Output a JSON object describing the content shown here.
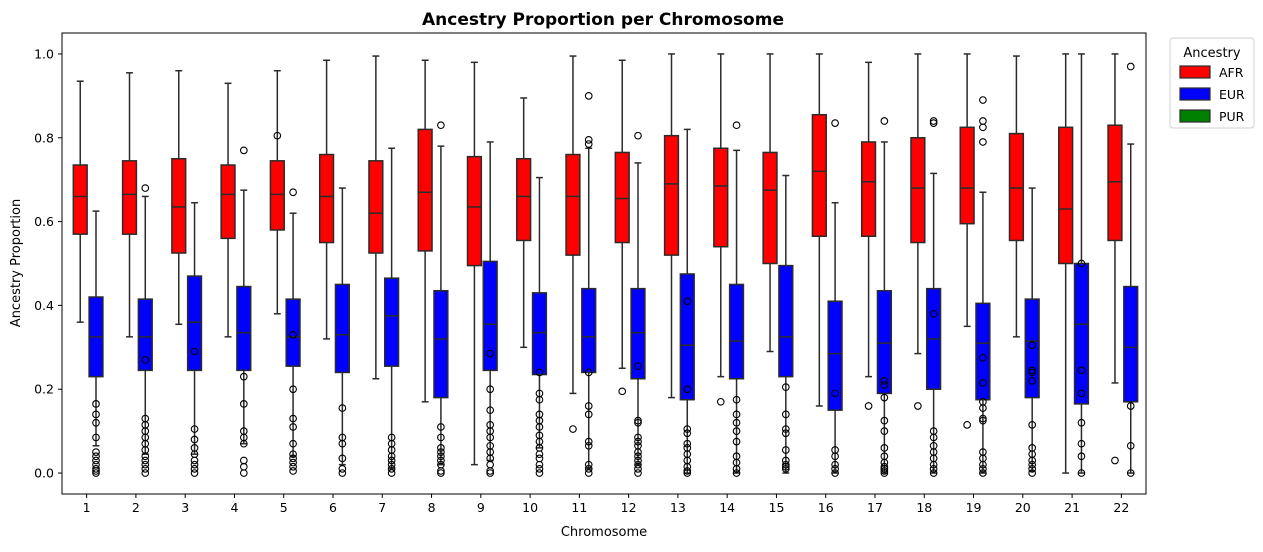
{
  "chart_data": {
    "type": "box",
    "title": "Ancestry Proportion per Chromosome",
    "xlabel": "Chromosome",
    "ylabel": "Ancestry Proportion",
    "ylim": [
      -0.05,
      1.05
    ],
    "yticks": [
      0.0,
      0.2,
      0.4,
      0.6,
      0.8,
      1.0
    ],
    "ytick_labels": [
      "0.0",
      "0.2",
      "0.4",
      "0.6",
      "0.8",
      "1.0"
    ],
    "categories": [
      "1",
      "2",
      "3",
      "4",
      "5",
      "6",
      "7",
      "8",
      "9",
      "10",
      "11",
      "12",
      "13",
      "14",
      "15",
      "16",
      "17",
      "18",
      "19",
      "20",
      "21",
      "22"
    ],
    "legend": {
      "title": "Ancestry",
      "placement": "outside-top-right",
      "entries": [
        "AFR",
        "EUR",
        "PUR"
      ]
    },
    "series": [
      {
        "name": "AFR",
        "color": "#ff0000",
        "boxes": [
          {
            "lo": 0.36,
            "q1": 0.57,
            "med": 0.66,
            "q3": 0.735,
            "hi": 0.935,
            "fliers": []
          },
          {
            "lo": 0.325,
            "q1": 0.57,
            "med": 0.665,
            "q3": 0.745,
            "hi": 0.955,
            "fliers": []
          },
          {
            "lo": 0.355,
            "q1": 0.525,
            "med": 0.635,
            "q3": 0.75,
            "hi": 0.96,
            "fliers": []
          },
          {
            "lo": 0.325,
            "q1": 0.56,
            "med": 0.665,
            "q3": 0.735,
            "hi": 0.93,
            "fliers": []
          },
          {
            "lo": 0.38,
            "q1": 0.58,
            "med": 0.665,
            "q3": 0.745,
            "hi": 0.96,
            "fliers": [
              0.805
            ]
          },
          {
            "lo": 0.32,
            "q1": 0.55,
            "med": 0.66,
            "q3": 0.76,
            "hi": 0.985,
            "fliers": []
          },
          {
            "lo": 0.225,
            "q1": 0.525,
            "med": 0.62,
            "q3": 0.745,
            "hi": 0.995,
            "fliers": []
          },
          {
            "lo": 0.17,
            "q1": 0.53,
            "med": 0.67,
            "q3": 0.82,
            "hi": 0.985,
            "fliers": []
          },
          {
            "lo": 0.02,
            "q1": 0.495,
            "med": 0.635,
            "q3": 0.755,
            "hi": 0.98,
            "fliers": []
          },
          {
            "lo": 0.3,
            "q1": 0.555,
            "med": 0.66,
            "q3": 0.75,
            "hi": 0.895,
            "fliers": []
          },
          {
            "lo": 0.19,
            "q1": 0.52,
            "med": 0.66,
            "q3": 0.76,
            "hi": 0.995,
            "fliers": [
              0.105
            ]
          },
          {
            "lo": 0.25,
            "q1": 0.55,
            "med": 0.655,
            "q3": 0.765,
            "hi": 0.985,
            "fliers": [
              0.195
            ]
          },
          {
            "lo": 0.18,
            "q1": 0.52,
            "med": 0.69,
            "q3": 0.805,
            "hi": 1.0,
            "fliers": []
          },
          {
            "lo": 0.23,
            "q1": 0.54,
            "med": 0.685,
            "q3": 0.775,
            "hi": 1.0,
            "fliers": [
              0.17
            ]
          },
          {
            "lo": 0.29,
            "q1": 0.5,
            "med": 0.675,
            "q3": 0.765,
            "hi": 1.0,
            "fliers": []
          },
          {
            "lo": 0.16,
            "q1": 0.565,
            "med": 0.72,
            "q3": 0.855,
            "hi": 1.0,
            "fliers": []
          },
          {
            "lo": 0.23,
            "q1": 0.565,
            "med": 0.695,
            "q3": 0.79,
            "hi": 0.98,
            "fliers": [
              0.16
            ]
          },
          {
            "lo": 0.285,
            "q1": 0.55,
            "med": 0.68,
            "q3": 0.8,
            "hi": 1.0,
            "fliers": [
              0.16
            ]
          },
          {
            "lo": 0.35,
            "q1": 0.595,
            "med": 0.68,
            "q3": 0.825,
            "hi": 1.0,
            "fliers": [
              0.115
            ]
          },
          {
            "lo": 0.325,
            "q1": 0.555,
            "med": 0.68,
            "q3": 0.81,
            "hi": 0.995,
            "fliers": []
          },
          {
            "lo": 0.0,
            "q1": 0.5,
            "med": 0.63,
            "q3": 0.825,
            "hi": 1.0,
            "fliers": []
          },
          {
            "lo": 0.215,
            "q1": 0.555,
            "med": 0.695,
            "q3": 0.83,
            "hi": 1.0,
            "fliers": [
              0.03
            ]
          }
        ]
      },
      {
        "name": "EUR",
        "color": "#0000ff",
        "boxes": [
          {
            "lo": 0.065,
            "q1": 0.23,
            "med": 0.325,
            "q3": 0.42,
            "hi": 0.625,
            "fliers": [
              0.165,
              0.14,
              0.12,
              0.085,
              0.05,
              0.04,
              0.03,
              0.02,
              0.01,
              0.005,
              0.0
            ]
          },
          {
            "lo": 0.045,
            "q1": 0.245,
            "med": 0.325,
            "q3": 0.415,
            "hi": 0.66,
            "fliers": [
              0.27,
              0.68,
              0.13,
              0.115,
              0.1,
              0.085,
              0.07,
              0.055,
              0.04,
              0.03,
              0.02,
              0.01,
              0.0
            ]
          },
          {
            "lo": 0.045,
            "q1": 0.245,
            "med": 0.36,
            "q3": 0.47,
            "hi": 0.645,
            "fliers": [
              0.29,
              0.105,
              0.08,
              0.06,
              0.045,
              0.03,
              0.02,
              0.01,
              0.0
            ]
          },
          {
            "lo": 0.07,
            "q1": 0.245,
            "med": 0.335,
            "q3": 0.445,
            "hi": 0.675,
            "fliers": [
              0.77,
              0.23,
              0.165,
              0.1,
              0.085,
              0.07,
              0.03,
              0.015,
              0.0
            ]
          },
          {
            "lo": 0.04,
            "q1": 0.255,
            "med": 0.325,
            "q3": 0.415,
            "hi": 0.62,
            "fliers": [
              0.67,
              0.33,
              0.2,
              0.13,
              0.11,
              0.07,
              0.045,
              0.035,
              0.025,
              0.015,
              0.005
            ]
          },
          {
            "lo": 0.02,
            "q1": 0.24,
            "med": 0.33,
            "q3": 0.45,
            "hi": 0.68,
            "fliers": [
              0.155,
              0.085,
              0.07,
              0.035,
              0.01,
              0.0
            ]
          },
          {
            "lo": 0.01,
            "q1": 0.255,
            "med": 0.375,
            "q3": 0.465,
            "hi": 0.775,
            "fliers": [
              0.085,
              0.07,
              0.055,
              0.04,
              0.03,
              0.02,
              0.01,
              0.0
            ]
          },
          {
            "lo": 0.02,
            "q1": 0.18,
            "med": 0.32,
            "q3": 0.435,
            "hi": 0.78,
            "fliers": [
              0.83,
              0.11,
              0.085,
              0.06,
              0.05,
              0.04,
              0.03,
              0.02,
              0.005,
              0.0
            ]
          },
          {
            "lo": 0.03,
            "q1": 0.245,
            "med": 0.355,
            "q3": 0.505,
            "hi": 0.79,
            "fliers": [
              0.285,
              0.2,
              0.15,
              0.115,
              0.1,
              0.085,
              0.065,
              0.05,
              0.035,
              0.02,
              0.005,
              0.0
            ]
          },
          {
            "lo": 0.06,
            "q1": 0.235,
            "med": 0.335,
            "q3": 0.43,
            "hi": 0.705,
            "fliers": [
              0.24,
              0.19,
              0.175,
              0.14,
              0.125,
              0.11,
              0.09,
              0.075,
              0.06,
              0.045,
              0.035,
              0.02,
              0.01,
              0.0
            ]
          },
          {
            "lo": 0.01,
            "q1": 0.24,
            "med": 0.325,
            "q3": 0.44,
            "hi": 0.775,
            "fliers": [
              0.9,
              0.795,
              0.785,
              0.24,
              0.16,
              0.14,
              0.075,
              0.065,
              0.02,
              0.01,
              0.0
            ]
          },
          {
            "lo": 0.02,
            "q1": 0.225,
            "med": 0.335,
            "q3": 0.44,
            "hi": 0.74,
            "fliers": [
              0.805,
              0.255,
              0.125,
              0.12,
              0.085,
              0.075,
              0.065,
              0.05,
              0.04,
              0.03,
              0.02,
              0.01,
              0.0
            ]
          },
          {
            "lo": 0.0,
            "q1": 0.175,
            "med": 0.305,
            "q3": 0.475,
            "hi": 0.82,
            "fliers": [
              0.41,
              0.2,
              0.105,
              0.095,
              0.07,
              0.06,
              0.045,
              0.03,
              0.015,
              0.005,
              0.0
            ]
          },
          {
            "lo": 0.0,
            "q1": 0.225,
            "med": 0.315,
            "q3": 0.45,
            "hi": 0.77,
            "fliers": [
              0.83,
              0.175,
              0.14,
              0.12,
              0.1,
              0.075,
              0.04,
              0.025,
              0.01,
              0.0
            ]
          },
          {
            "lo": 0.0,
            "q1": 0.23,
            "med": 0.325,
            "q3": 0.495,
            "hi": 0.71,
            "fliers": [
              0.205,
              0.14,
              0.105,
              0.095,
              0.055,
              0.03,
              0.02,
              0.015,
              0.01
            ]
          },
          {
            "lo": 0.0,
            "q1": 0.15,
            "med": 0.285,
            "q3": 0.41,
            "hi": 0.645,
            "fliers": [
              0.835,
              0.19,
              0.055,
              0.04,
              0.02,
              0.01,
              0.0
            ]
          },
          {
            "lo": 0.0,
            "q1": 0.19,
            "med": 0.31,
            "q3": 0.435,
            "hi": 0.79,
            "fliers": [
              0.84,
              0.22,
              0.21,
              0.18,
              0.125,
              0.1,
              0.06,
              0.04,
              0.025,
              0.015,
              0.01,
              0.005,
              0.0
            ]
          },
          {
            "lo": 0.0,
            "q1": 0.2,
            "med": 0.32,
            "q3": 0.44,
            "hi": 0.715,
            "fliers": [
              0.84,
              0.835,
              0.38,
              0.1,
              0.085,
              0.065,
              0.05,
              0.035,
              0.02,
              0.01,
              0.0
            ]
          },
          {
            "lo": 0.0,
            "q1": 0.175,
            "med": 0.31,
            "q3": 0.405,
            "hi": 0.67,
            "fliers": [
              0.89,
              0.84,
              0.825,
              0.79,
              0.275,
              0.215,
              0.17,
              0.155,
              0.13,
              0.125,
              0.05,
              0.035,
              0.02,
              0.01,
              0.0
            ]
          },
          {
            "lo": 0.005,
            "q1": 0.18,
            "med": 0.315,
            "q3": 0.415,
            "hi": 0.68,
            "fliers": [
              0.305,
              0.245,
              0.24,
              0.22,
              0.115,
              0.06,
              0.045,
              0.03,
              0.02,
              0.01,
              0.0
            ]
          },
          {
            "lo": 0.0,
            "q1": 0.165,
            "med": 0.355,
            "q3": 0.5,
            "hi": 1.0,
            "fliers": [
              0.5,
              0.245,
              0.19,
              0.12,
              0.07,
              0.04,
              0.0
            ]
          },
          {
            "lo": 0.0,
            "q1": 0.17,
            "med": 0.3,
            "q3": 0.445,
            "hi": 0.785,
            "fliers": [
              0.97,
              0.16,
              0.065,
              0.0
            ]
          }
        ]
      },
      {
        "name": "PUR",
        "color": "#008000",
        "boxes": []
      }
    ]
  }
}
